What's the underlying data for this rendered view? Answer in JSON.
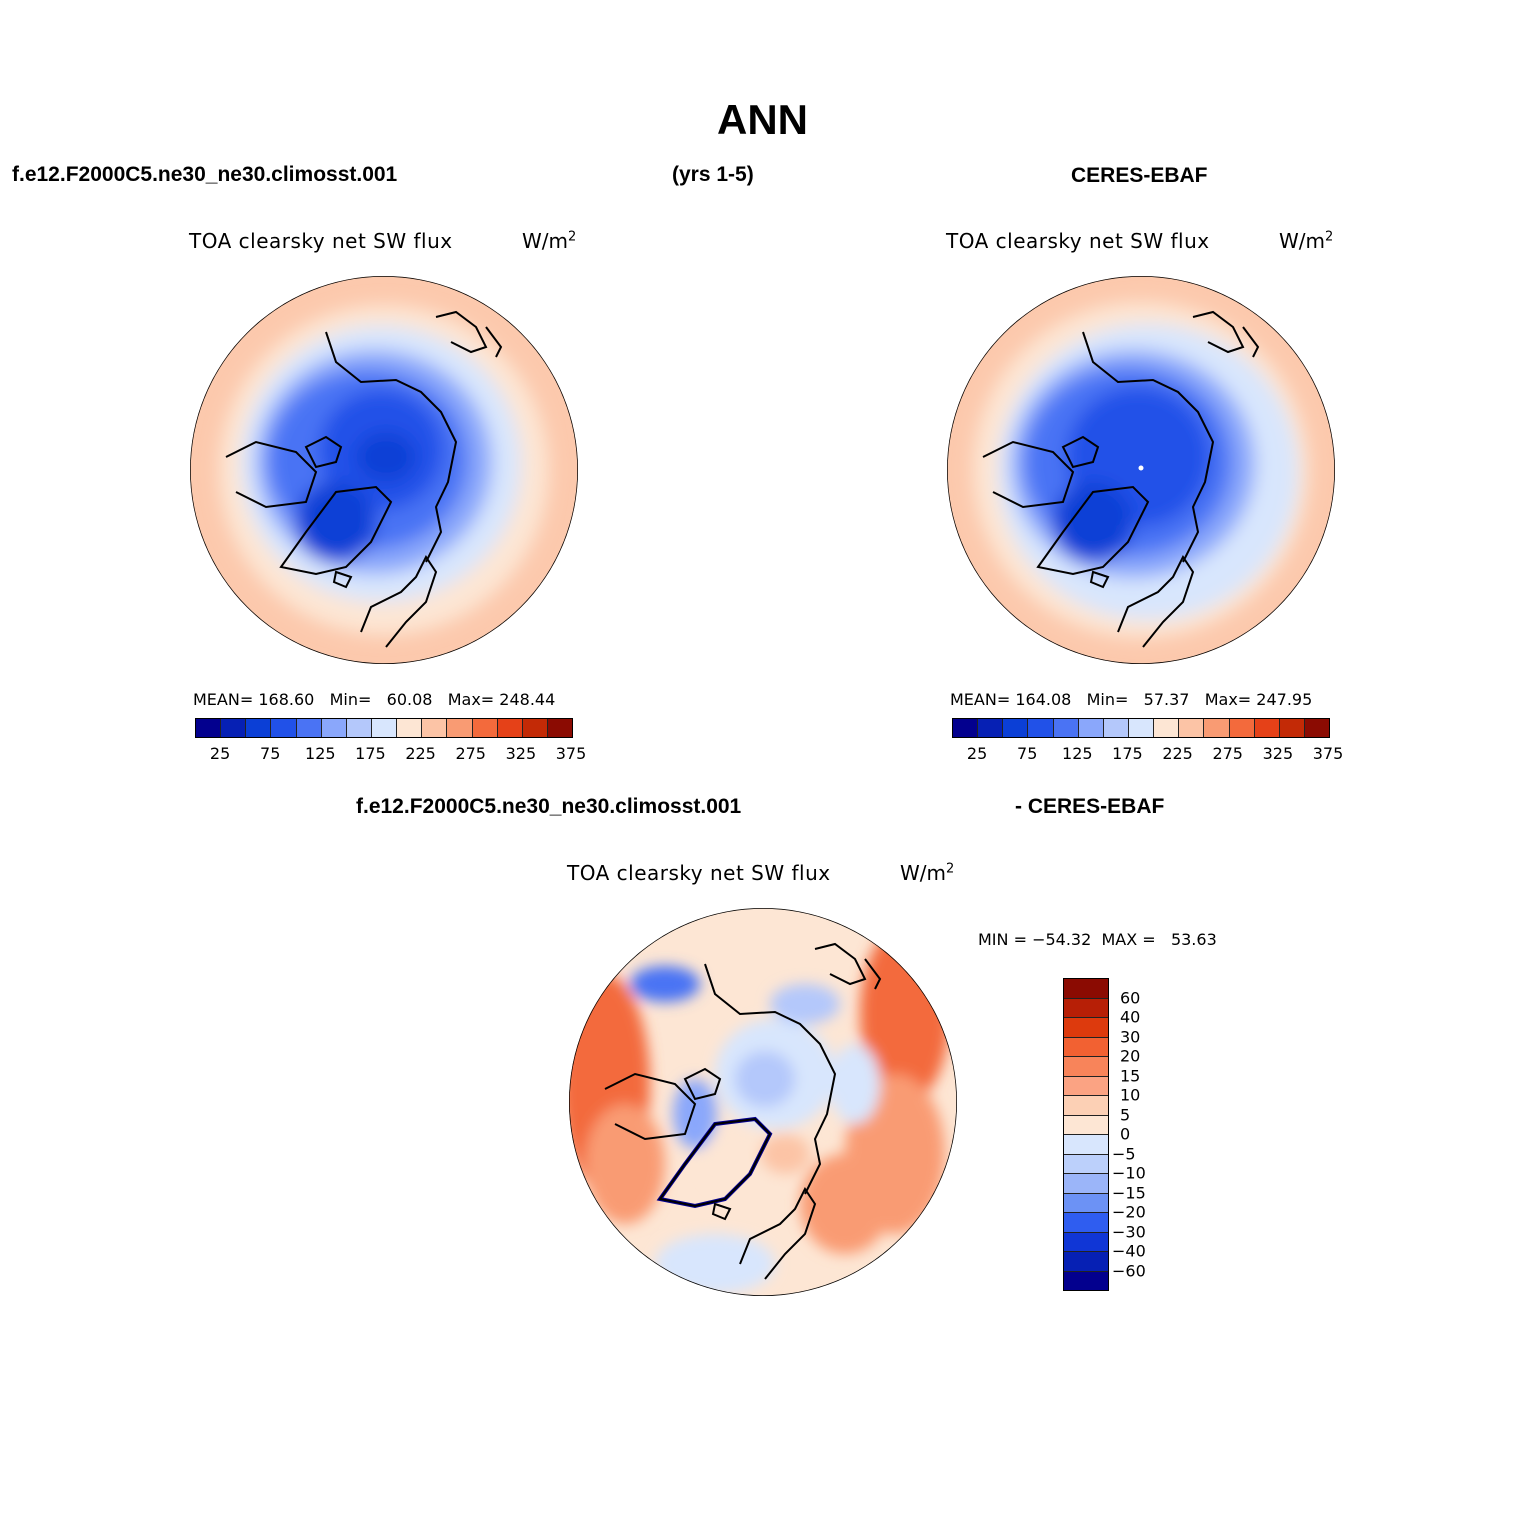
{
  "title": "ANN",
  "header": {
    "model_case": "f.e12.F2000C5.ne30_ne30.climosst.001",
    "years": "(yrs 1-5)",
    "obs": "CERES-EBAF"
  },
  "panel_model": {
    "title": "TOA clearsky net SW flux",
    "unit_base": "W/m",
    "unit_exp": "2",
    "mean_label": "MEAN=",
    "mean_value": "168.60",
    "min_label": "Min=",
    "min_value": "60.08",
    "max_label": "Max=",
    "max_value": "248.44"
  },
  "panel_obs": {
    "title": "TOA clearsky net SW flux",
    "unit_base": "W/m",
    "unit_exp": "2",
    "mean_label": "MEAN=",
    "mean_value": "164.08",
    "min_label": "Min=",
    "min_value": "57.37",
    "max_label": "Max=",
    "max_value": "247.95"
  },
  "colorbar_abs": {
    "colors": [
      "#03008e",
      "#0620b4",
      "#0b3fd6",
      "#2151e8",
      "#4a73f4",
      "#8aa7fb",
      "#b4c8fb",
      "#d8e6fd",
      "#fde6d4",
      "#fcc4a6",
      "#f99b73",
      "#f36a3c",
      "#e54118",
      "#c32a06",
      "#8b0b02"
    ],
    "tick_labels": [
      "25",
      "75",
      "125",
      "175",
      "225",
      "275",
      "325",
      "375"
    ]
  },
  "diff_header": {
    "model_case": "f.e12.F2000C5.ne30_ne30.climosst.001",
    "obs": "- CERES-EBAF"
  },
  "panel_diff": {
    "title": "TOA clearsky net SW flux",
    "unit_base": "W/m",
    "unit_exp": "2",
    "min_label": "MIN =",
    "min_value": "−54.32",
    "max_label": "MAX =",
    "max_value": "53.63"
  },
  "colorbar_diff": {
    "colors": [
      "#8b0b02",
      "#b71f06",
      "#dd3a0d",
      "#f26132",
      "#f8845a",
      "#fba383",
      "#fcd0b5",
      "#fde6d4",
      "#d8e6fd",
      "#bcd0fb",
      "#9bb5f9",
      "#6c92f5",
      "#2f5df0",
      "#1036d6",
      "#0620b4",
      "#03008e"
    ],
    "tick_labels": [
      "60",
      "40",
      "30",
      "20",
      "15",
      "10",
      "5",
      "0",
      "−5",
      "−10",
      "−15",
      "−20",
      "−30",
      "−40",
      "−60"
    ]
  }
}
